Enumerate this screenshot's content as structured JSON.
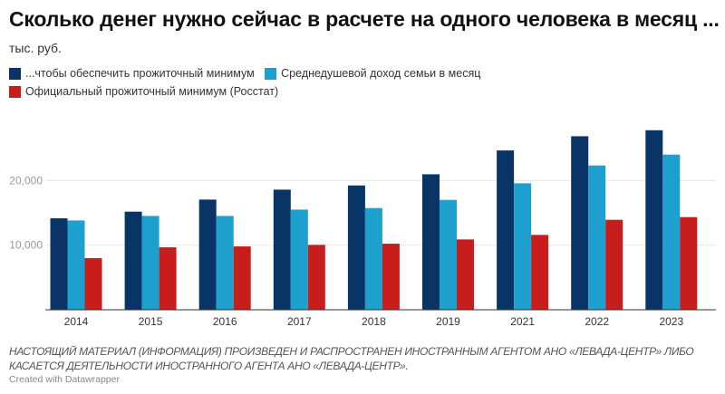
{
  "chart_data": {
    "type": "bar",
    "title": "Сколько денег нужно сейчас в расчете на одного человека в месяц ...",
    "subtitle": "тыс. руб.",
    "categories": [
      "2014",
      "2015",
      "2016",
      "2017",
      "2018",
      "2019",
      "2021",
      "2022",
      "2023"
    ],
    "series": [
      {
        "name": "...чтобы обеспечить прожиточный минимум",
        "color": "#083566",
        "values": [
          14160,
          15190,
          17060,
          18600,
          19250,
          20980,
          24670,
          26870,
          27800
        ]
      },
      {
        "name": "Среднедушевой доход семьи в месяц",
        "color": "#1ea0cf",
        "values": [
          13830,
          14530,
          14530,
          15510,
          15750,
          17010,
          19580,
          22340,
          24020
        ]
      },
      {
        "name": "Официальный прожиточный минимум (Росстат)",
        "color": "#c71e1d",
        "values": [
          7990,
          9670,
          9810,
          10050,
          10230,
          10890,
          11590,
          13930,
          14350
        ]
      }
    ],
    "yticks": [
      10000,
      20000
    ],
    "ytick_labels": [
      "10,000",
      "20,000"
    ],
    "ylim": [
      0,
      30000
    ],
    "grid": true,
    "legend": "top-left"
  },
  "footer": {
    "note": "НАСТОЯЩИЙ МАТЕРИАЛ (ИНФОРМАЦИЯ) ПРОИЗВЕДЕН И РАСПРОСТРАНЕН ИНОСТРАННЫМ АГЕНТОМ АНО «ЛЕВАДА-ЦЕНТР» ЛИБО КАСАЕТСЯ ДЕЯТЕЛЬНОСТИ ИНОСТРАННОГО АГЕНТА АНО «ЛЕВАДА-ЦЕНТР».",
    "credit": "Created with Datawrapper"
  }
}
